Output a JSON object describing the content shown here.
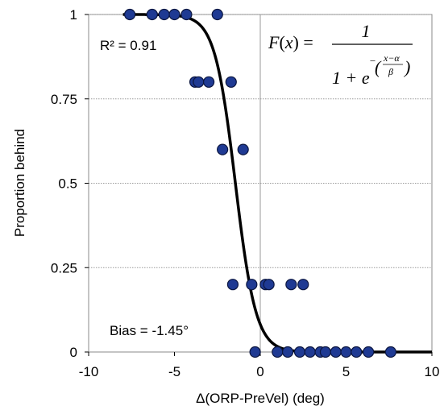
{
  "chart_data": {
    "type": "scatter",
    "xlabel": "Δ(ORP-PreVel) (deg)",
    "ylabel": "Proportion behind",
    "xlim": [
      -10,
      10
    ],
    "ylim": [
      0,
      1
    ],
    "x_ticks": [
      "-10",
      "-5",
      "0",
      "5",
      "10"
    ],
    "y_ticks": [
      "0",
      "0.25",
      "0.5",
      "0.75",
      "1"
    ],
    "grid": "horizontal gridlines at 0.25, 0.5, 0.75, 1; vertical line at x = 0",
    "annotations": {
      "r2": "R² = 0.91",
      "bias": "Bias = -1.45°",
      "formula": "F(x) = 1 / (1 + e^{-((x-α)/β)})"
    },
    "fit_curve": {
      "type": "logistic",
      "alpha": -1.45,
      "beta": -0.6
    },
    "marker_color": "#1F3A93",
    "marker_edge": "#0B1640",
    "points": [
      {
        "x": -7.6,
        "y": 1
      },
      {
        "x": -6.3,
        "y": 1
      },
      {
        "x": -5.6,
        "y": 1
      },
      {
        "x": -5.0,
        "y": 1
      },
      {
        "x": -4.3,
        "y": 1
      },
      {
        "x": -2.5,
        "y": 1
      },
      {
        "x": -3.8,
        "y": 0.8
      },
      {
        "x": -3.6,
        "y": 0.8
      },
      {
        "x": -3.0,
        "y": 0.8
      },
      {
        "x": -1.7,
        "y": 0.8
      },
      {
        "x": -2.2,
        "y": 0.6
      },
      {
        "x": -1.0,
        "y": 0.6
      },
      {
        "x": -1.6,
        "y": 0.2
      },
      {
        "x": -0.5,
        "y": 0.2
      },
      {
        "x": 0.3,
        "y": 0.2
      },
      {
        "x": 0.5,
        "y": 0.2
      },
      {
        "x": 1.8,
        "y": 0.2
      },
      {
        "x": 2.5,
        "y": 0.2
      },
      {
        "x": -0.3,
        "y": 0
      },
      {
        "x": 1.0,
        "y": 0
      },
      {
        "x": 1.6,
        "y": 0
      },
      {
        "x": 2.3,
        "y": 0
      },
      {
        "x": 2.9,
        "y": 0
      },
      {
        "x": 3.5,
        "y": 0
      },
      {
        "x": 3.8,
        "y": 0
      },
      {
        "x": 4.4,
        "y": 0
      },
      {
        "x": 5.0,
        "y": 0
      },
      {
        "x": 5.6,
        "y": 0
      },
      {
        "x": 6.3,
        "y": 0
      },
      {
        "x": 7.6,
        "y": 0
      }
    ]
  }
}
